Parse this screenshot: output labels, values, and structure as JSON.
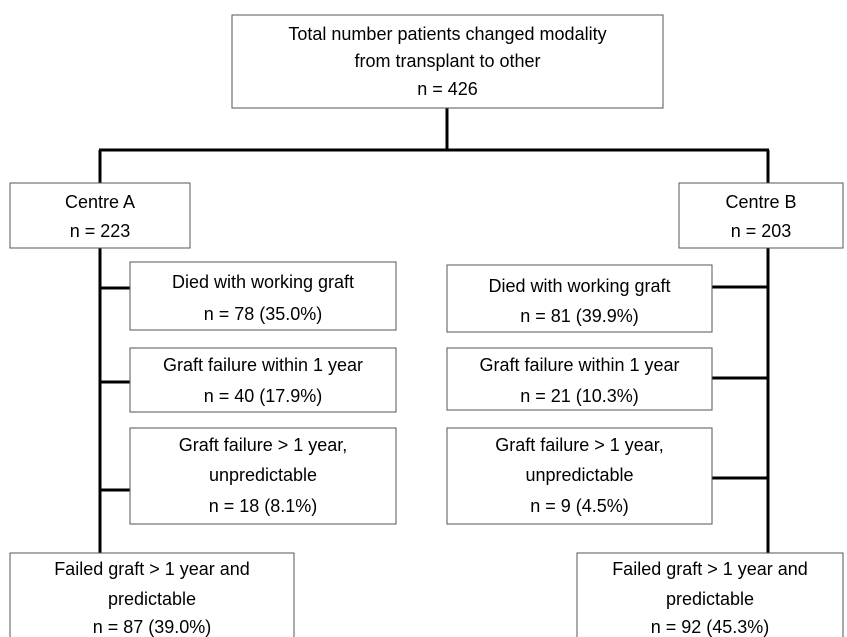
{
  "root": {
    "lines": [
      "Total number patients changed modality",
      "from transplant to other",
      "n = 426"
    ]
  },
  "centres": [
    {
      "lines": [
        "Centre A",
        "n = 223"
      ],
      "outcomes": [
        {
          "lines": [
            "Died with working graft",
            "n = 78 (35.0%)"
          ]
        },
        {
          "lines": [
            "Graft failure within 1 year",
            "n = 40 (17.9%)"
          ]
        },
        {
          "lines": [
            "Graft failure > 1 year,",
            "unpredictable",
            "n = 18 (8.1%)"
          ]
        }
      ],
      "final": {
        "lines": [
          "Failed graft > 1 year and",
          "predictable",
          "n = 87 (39.0%)"
        ]
      }
    },
    {
      "lines": [
        "Centre B",
        "n = 203"
      ],
      "outcomes": [
        {
          "lines": [
            "Died with working graft",
            "n = 81 (39.9%)"
          ]
        },
        {
          "lines": [
            "Graft failure within 1 year",
            "n = 21 (10.3%)"
          ]
        },
        {
          "lines": [
            "Graft failure > 1 year,",
            "unpredictable",
            "n = 9 (4.5%)"
          ]
        }
      ],
      "final": {
        "lines": [
          "Failed graft > 1 year and",
          "predictable",
          "n = 92 (45.3%)"
        ]
      }
    }
  ]
}
